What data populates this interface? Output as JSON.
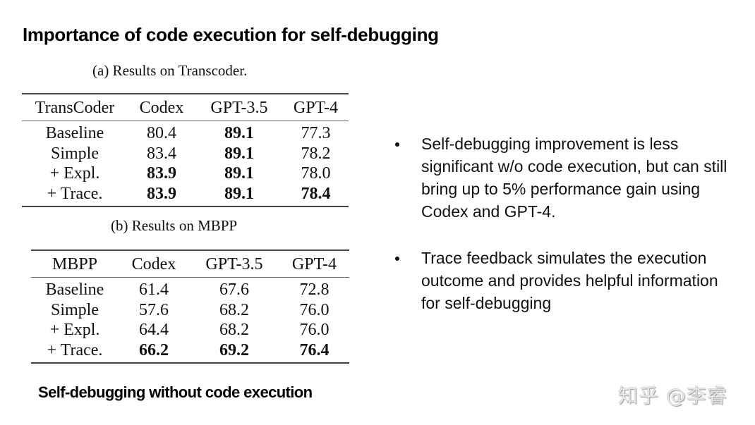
{
  "slide": {
    "title": "Importance of code execution for self-debugging",
    "footer_caption": "Self-debugging without code execution",
    "watermark": "知乎 @李睿"
  },
  "tables": [
    {
      "caption": "(a) Results on Transcoder.",
      "headers": [
        "TransCoder",
        "Codex",
        "GPT-3.5",
        "GPT-4"
      ],
      "rows": [
        {
          "label": "Baseline",
          "values": [
            "80.4",
            "89.1",
            "77.3"
          ],
          "bold": [
            false,
            true,
            false
          ]
        },
        {
          "label": "Simple",
          "values": [
            "83.4",
            "89.1",
            "78.2"
          ],
          "bold": [
            false,
            true,
            false
          ]
        },
        {
          "label": "+ Expl.",
          "values": [
            "83.9",
            "89.1",
            "78.0"
          ],
          "bold": [
            true,
            true,
            false
          ]
        },
        {
          "label": "+ Trace.",
          "values": [
            "83.9",
            "89.1",
            "78.4"
          ],
          "bold": [
            true,
            true,
            true
          ]
        }
      ]
    },
    {
      "caption": "(b) Results on MBPP",
      "headers": [
        "MBPP",
        "Codex",
        "GPT-3.5",
        "GPT-4"
      ],
      "rows": [
        {
          "label": "Baseline",
          "values": [
            "61.4",
            "67.6",
            "72.8"
          ],
          "bold": [
            false,
            false,
            false
          ]
        },
        {
          "label": "Simple",
          "values": [
            "57.6",
            "68.2",
            "76.0"
          ],
          "bold": [
            false,
            false,
            false
          ]
        },
        {
          "label": "+ Expl.",
          "values": [
            "64.4",
            "68.2",
            "76.0"
          ],
          "bold": [
            false,
            false,
            false
          ]
        },
        {
          "label": "+ Trace.",
          "values": [
            "66.2",
            "69.2",
            "76.4"
          ],
          "bold": [
            true,
            true,
            true
          ]
        }
      ]
    }
  ],
  "bullets": [
    "Self-debugging improvement is less significant w/o code execution, but can still bring up to 5% performance gain using Codex and GPT-4.",
    "Trace feedback simulates the execution outcome and provides helpful information for self-debugging"
  ]
}
